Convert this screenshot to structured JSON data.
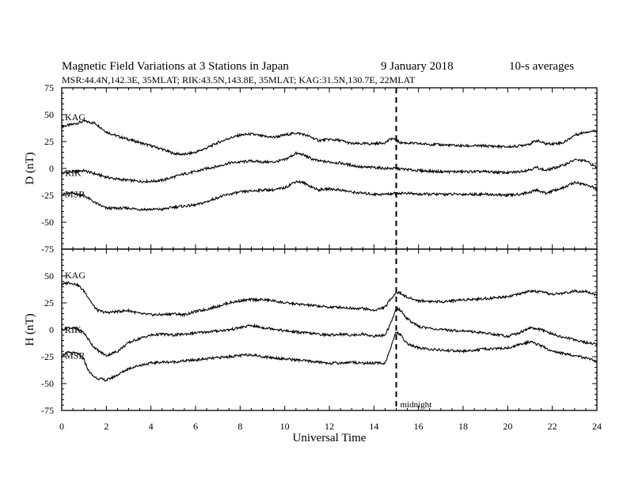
{
  "header": {
    "title": "Magnetic Field Variations at 3 Stations in Japan",
    "date": "9   January  2018",
    "averaging": "10-s averages",
    "stations_line": "MSR:44.4N,142.3E, 35MLAT;  RIK:43.5N,143.8E, 35MLAT;  KAG:31.5N,130.7E, 22MLAT"
  },
  "chart_data": [
    {
      "type": "line",
      "panel": "top",
      "ylabel": "D (nT)",
      "xlabel": "",
      "xlim": [
        0,
        24
      ],
      "ylim": [
        -75,
        75
      ],
      "xticks": [
        0,
        2,
        4,
        6,
        8,
        10,
        12,
        14,
        16,
        18,
        20,
        22,
        24
      ],
      "yticks": [
        -75,
        -50,
        -25,
        0,
        25,
        50,
        75
      ],
      "vline": {
        "x": 15,
        "style": "dashed"
      },
      "series": [
        {
          "name": "KAG",
          "x": [
            0,
            0.5,
            1,
            1.5,
            2,
            2.5,
            3,
            3.5,
            4,
            4.5,
            5,
            5.5,
            6,
            6.5,
            7,
            7.5,
            8,
            8.5,
            9,
            9.5,
            10,
            10.5,
            10.8,
            11.2,
            11.5,
            12,
            12.5,
            13,
            13.5,
            14,
            14.5,
            14.8,
            15.2,
            16,
            17,
            18,
            19,
            20,
            20.5,
            21,
            21.3,
            21.7,
            22,
            22.5,
            23,
            23.5,
            24
          ],
          "y": [
            39,
            41,
            44,
            42,
            34,
            30,
            27,
            24,
            21,
            18,
            14,
            13,
            15,
            19,
            24,
            28,
            31,
            32,
            30,
            29,
            31,
            33,
            32,
            29,
            26,
            27,
            26,
            23,
            23,
            23,
            24,
            28,
            24,
            23,
            22,
            21,
            21,
            20,
            21,
            23,
            26,
            23,
            23,
            24,
            31,
            34,
            35
          ]
        },
        {
          "name": "RIK",
          "x": [
            0,
            0.5,
            1,
            1.5,
            2,
            2.5,
            3,
            3.5,
            4,
            4.5,
            5,
            5.5,
            6,
            6.5,
            7,
            7.5,
            8,
            8.5,
            9,
            9.5,
            10,
            10.5,
            10.8,
            11.2,
            11.5,
            12,
            12.5,
            13,
            13.5,
            14,
            14.5,
            15,
            15.5,
            16,
            17,
            18,
            19,
            20,
            20.5,
            21,
            21.3,
            21.7,
            22,
            22.5,
            23,
            23.5,
            24
          ],
          "y": [
            -4,
            -3,
            -2,
            -5,
            -8,
            -10,
            -11,
            -12,
            -12,
            -11,
            -8,
            -5,
            -3,
            0,
            2,
            5,
            6,
            7,
            6,
            6,
            8,
            14,
            13,
            9,
            7,
            6,
            5,
            3,
            1,
            1,
            0,
            0,
            -1,
            -2,
            -3,
            -3,
            -3,
            -4,
            -3,
            -1,
            1,
            -2,
            0,
            3,
            8,
            7,
            1
          ]
        },
        {
          "name": "MSR",
          "x": [
            0,
            0.5,
            1,
            1.5,
            2,
            2.5,
            3,
            3.5,
            4,
            4.5,
            5,
            5.5,
            6,
            6.5,
            7,
            7.5,
            8,
            8.5,
            9,
            9.5,
            10,
            10.5,
            10.8,
            11.2,
            11.5,
            12,
            12.5,
            13,
            13.5,
            14,
            14.5,
            15,
            15.5,
            16,
            17,
            18,
            19,
            20,
            20.5,
            21,
            21.3,
            21.7,
            22,
            22.5,
            23,
            23.5,
            24
          ],
          "y": [
            -24,
            -23,
            -25,
            -32,
            -37,
            -37,
            -37,
            -38,
            -38,
            -38,
            -36,
            -35,
            -34,
            -31,
            -27,
            -24,
            -22,
            -21,
            -20,
            -20,
            -18,
            -12,
            -13,
            -17,
            -20,
            -19,
            -20,
            -22,
            -23,
            -24,
            -24,
            -23,
            -23,
            -24,
            -24,
            -24,
            -24,
            -25,
            -24,
            -22,
            -20,
            -23,
            -21,
            -18,
            -13,
            -15,
            -19
          ]
        }
      ]
    },
    {
      "type": "line",
      "panel": "bottom",
      "ylabel": "H (nT)",
      "xlabel": "Universal Time",
      "xlim": [
        0,
        24
      ],
      "ylim": [
        -75,
        75
      ],
      "xticks": [
        0,
        2,
        4,
        6,
        8,
        10,
        12,
        14,
        16,
        18,
        20,
        22,
        24
      ],
      "yticks": [
        -75,
        -50,
        -25,
        0,
        25,
        50,
        75
      ],
      "vline": {
        "x": 15,
        "style": "dashed",
        "label": "midnight"
      },
      "series": [
        {
          "name": "KAG",
          "x": [
            0,
            0.3,
            0.7,
            1,
            1.2,
            1.4,
            1.6,
            2,
            2.5,
            3,
            3.5,
            4,
            4.5,
            5,
            5.5,
            6,
            6.5,
            7,
            7.5,
            8,
            8.5,
            9,
            9.5,
            10,
            10.5,
            11,
            11.5,
            12,
            12.5,
            13,
            13.5,
            14,
            14.5,
            14.8,
            15,
            15.2,
            15.5,
            16,
            17,
            18,
            19,
            20,
            20.5,
            21,
            21.5,
            22,
            22.5,
            23,
            23.5,
            24
          ],
          "y": [
            42,
            44,
            42,
            36,
            30,
            23,
            18,
            16,
            17,
            18,
            15,
            14,
            14,
            15,
            14,
            17,
            19,
            22,
            25,
            27,
            28,
            28,
            27,
            25,
            24,
            23,
            22,
            21,
            21,
            20,
            20,
            18,
            21,
            30,
            35,
            34,
            30,
            27,
            26,
            28,
            29,
            31,
            33,
            36,
            35,
            33,
            34,
            36,
            36,
            32
          ]
        },
        {
          "name": "RIK",
          "x": [
            0,
            0.3,
            0.7,
            1,
            1.2,
            1.4,
            1.6,
            2,
            2.5,
            3,
            3.5,
            4,
            4.5,
            5,
            5.5,
            6,
            6.5,
            7,
            7.5,
            8,
            8.5,
            9,
            9.5,
            10,
            10.5,
            11,
            11.5,
            12,
            12.5,
            13,
            13.5,
            14,
            14.5,
            14.8,
            15,
            15.2,
            15.5,
            16,
            17,
            18,
            19,
            20,
            20.5,
            21,
            21.5,
            22,
            22.5,
            23,
            23.5,
            24
          ],
          "y": [
            0,
            2,
            1,
            -3,
            -9,
            -15,
            -19,
            -24,
            -20,
            -12,
            -8,
            -5,
            -4,
            -5,
            -4,
            -3,
            -2,
            -1,
            0,
            2,
            4,
            2,
            1,
            -1,
            -2,
            -3,
            -4,
            -5,
            -4,
            -5,
            -4,
            -6,
            -5,
            8,
            20,
            18,
            10,
            3,
            0,
            -1,
            -3,
            -6,
            -3,
            2,
            0,
            -4,
            -7,
            -9,
            -12,
            -13
          ]
        },
        {
          "name": "MSR",
          "x": [
            0,
            0.3,
            0.7,
            1,
            1.2,
            1.4,
            1.6,
            2,
            2.5,
            3,
            3.5,
            4,
            4.5,
            5,
            5.5,
            6,
            6.5,
            7,
            7.5,
            8,
            8.5,
            9,
            9.5,
            10,
            10.5,
            11,
            11.5,
            12,
            12.5,
            13,
            13.5,
            14,
            14.5,
            14.8,
            15,
            15.2,
            15.5,
            16,
            17,
            18,
            19,
            20,
            20.5,
            21,
            21.5,
            22,
            22.5,
            23,
            23.5,
            24
          ],
          "y": [
            -24,
            -21,
            -22,
            -28,
            -38,
            -43,
            -45,
            -47,
            -42,
            -36,
            -33,
            -31,
            -30,
            -30,
            -29,
            -28,
            -27,
            -26,
            -25,
            -24,
            -23,
            -25,
            -26,
            -27,
            -28,
            -29,
            -30,
            -31,
            -31,
            -30,
            -31,
            -31,
            -31,
            -14,
            -2,
            -5,
            -13,
            -17,
            -19,
            -20,
            -18,
            -17,
            -14,
            -11,
            -15,
            -20,
            -22,
            -24,
            -26,
            -30
          ]
        }
      ]
    }
  ]
}
